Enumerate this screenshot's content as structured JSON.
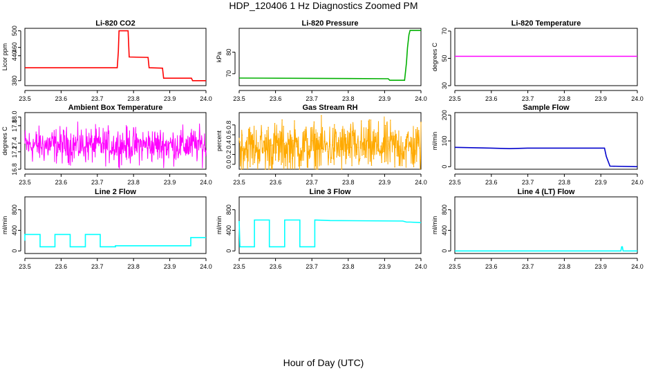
{
  "title": "HDP_120406  1 Hz Diagnostics Zoomed PM",
  "xlabel": "Hour of Day (UTC)",
  "chart_data": [
    {
      "type": "line",
      "title": "Li-820 CO2",
      "ylabel": "Licor ppm",
      "color": "#ff0000",
      "xlim": [
        23.5,
        24.0
      ],
      "ylim": [
        368,
        506
      ],
      "yticks": [
        380,
        440,
        460,
        500
      ],
      "xticks": [
        23.5,
        23.6,
        23.7,
        23.8,
        23.9,
        24.0
      ],
      "series": [
        {
          "x": [
            23.5,
            23.755,
            23.758,
            23.76,
            23.785,
            23.788,
            23.84,
            23.843,
            23.88,
            23.883,
            23.9,
            23.96,
            23.963,
            23.97,
            24.0
          ],
          "y": [
            411,
            411,
            450,
            500,
            500,
            437,
            436,
            411,
            410,
            386,
            386,
            386,
            380,
            380,
            380
          ]
        }
      ]
    },
    {
      "type": "line",
      "title": "Li-820 Pressure",
      "ylabel": "kPa",
      "color": "#00b000",
      "xlim": [
        23.5,
        24.0
      ],
      "ylim": [
        64.5,
        91
      ],
      "yticks": [
        70,
        80
      ],
      "xticks": [
        23.5,
        23.6,
        23.7,
        23.8,
        23.9,
        24.0
      ],
      "series": [
        {
          "x": [
            23.5,
            23.7,
            23.91,
            23.914,
            23.955,
            23.96,
            23.963,
            23.967,
            23.97,
            24.0
          ],
          "y": [
            68,
            67.9,
            67.7,
            67,
            67,
            75,
            82,
            88,
            90,
            90
          ]
        }
      ]
    },
    {
      "type": "line",
      "title": "Li-820 Temperature",
      "ylabel": "degrees C",
      "color": "#ff00ff",
      "xlim": [
        23.5,
        24.0
      ],
      "ylim": [
        30,
        72
      ],
      "yticks": [
        30,
        50,
        70
      ],
      "xticks": [
        23.5,
        23.6,
        23.7,
        23.8,
        23.9,
        24.0
      ],
      "series": [
        {
          "x": [
            23.5,
            24.0
          ],
          "y": [
            51.5,
            51.5
          ]
        }
      ]
    },
    {
      "type": "line",
      "title": "Ambient Box Temperature",
      "ylabel": "degrees C",
      "color": "#ff00ff",
      "xlim": [
        23.5,
        24.0
      ],
      "ylim": [
        16.8,
        18.1
      ],
      "yticks": [
        16.8,
        17.2,
        17.4,
        17.8,
        18.0
      ],
      "xticks": [
        23.5,
        23.6,
        23.7,
        23.8,
        23.9,
        24.0
      ],
      "series": [
        {
          "noise": true,
          "x": [
            23.5,
            24.0
          ],
          "y": [
            17.35,
            17.35
          ],
          "spread": 0.45
        }
      ]
    },
    {
      "type": "scatter",
      "title": "Gas Stream RH",
      "ylabel": "percent",
      "color": "#ffaa00",
      "xlim": [
        23.5,
        24.0
      ],
      "ylim": [
        -0.1,
        1.05
      ],
      "yticks": [
        0.0,
        0.2,
        0.4,
        0.6,
        0.8
      ],
      "xticks": [
        23.5,
        23.6,
        23.7,
        23.8,
        23.9,
        24.0
      ],
      "series": [
        {
          "noise": true,
          "x": [
            23.5,
            24.0
          ],
          "y": [
            0.35,
            0.35
          ],
          "spread": 0.55
        }
      ]
    },
    {
      "type": "line",
      "title": "Sample Flow",
      "ylabel": "ml/min",
      "color": "#0000cc",
      "xlim": [
        23.5,
        24.0
      ],
      "ylim": [
        -10,
        210
      ],
      "yticks": [
        0,
        100,
        200
      ],
      "xticks": [
        23.5,
        23.6,
        23.7,
        23.8,
        23.9,
        24.0
      ],
      "series": [
        {
          "x": [
            23.5,
            23.6,
            23.65,
            23.7,
            23.8,
            23.91,
            23.915,
            23.925,
            24.0
          ],
          "y": [
            75,
            72,
            70,
            72,
            72,
            72,
            40,
            2,
            0
          ]
        }
      ]
    },
    {
      "type": "line",
      "title": "Line 2 Flow",
      "ylabel": "ml/min",
      "color": "#00ffff",
      "xlim": [
        23.5,
        24.0
      ],
      "ylim": [
        -50,
        1050
      ],
      "yticks": [
        0,
        400,
        800
      ],
      "xticks": [
        23.5,
        23.6,
        23.7,
        23.8,
        23.9,
        24.0
      ],
      "series": [
        {
          "x": [
            23.5,
            23.5,
            23.542,
            23.542,
            23.583,
            23.583,
            23.625,
            23.625,
            23.667,
            23.667,
            23.708,
            23.708,
            23.75,
            23.75,
            23.958,
            23.958,
            24.0
          ],
          "y": [
            200,
            320,
            320,
            80,
            80,
            320,
            320,
            80,
            80,
            320,
            320,
            80,
            80,
            100,
            100,
            260,
            260
          ]
        }
      ]
    },
    {
      "type": "line",
      "title": "Line 3 Flow",
      "ylabel": "ml/min",
      "color": "#00ffff",
      "xlim": [
        23.5,
        24.0
      ],
      "ylim": [
        -50,
        1050
      ],
      "yticks": [
        0,
        400,
        800
      ],
      "xticks": [
        23.5,
        23.6,
        23.7,
        23.8,
        23.9,
        24.0
      ],
      "series": [
        {
          "x": [
            23.5,
            23.5,
            23.502,
            23.502,
            23.542,
            23.542,
            23.583,
            23.583,
            23.625,
            23.625,
            23.667,
            23.667,
            23.708,
            23.708,
            23.75,
            23.95,
            23.96,
            23.97,
            24.0
          ],
          "y": [
            580,
            580,
            80,
            80,
            80,
            600,
            600,
            80,
            80,
            600,
            600,
            80,
            80,
            600,
            590,
            580,
            560,
            560,
            550
          ]
        }
      ]
    },
    {
      "type": "line",
      "title": "Line 4 (LT) Flow",
      "ylabel": "ml/min",
      "color": "#00ffff",
      "xlim": [
        23.5,
        24.0
      ],
      "ylim": [
        -50,
        1050
      ],
      "yticks": [
        0,
        400,
        800
      ],
      "xticks": [
        23.5,
        23.6,
        23.7,
        23.8,
        23.9,
        24.0
      ],
      "series": [
        {
          "x": [
            23.5,
            23.955,
            23.957,
            23.959,
            23.961,
            24.0
          ],
          "y": [
            0,
            0,
            80,
            80,
            0,
            0
          ]
        }
      ]
    }
  ]
}
